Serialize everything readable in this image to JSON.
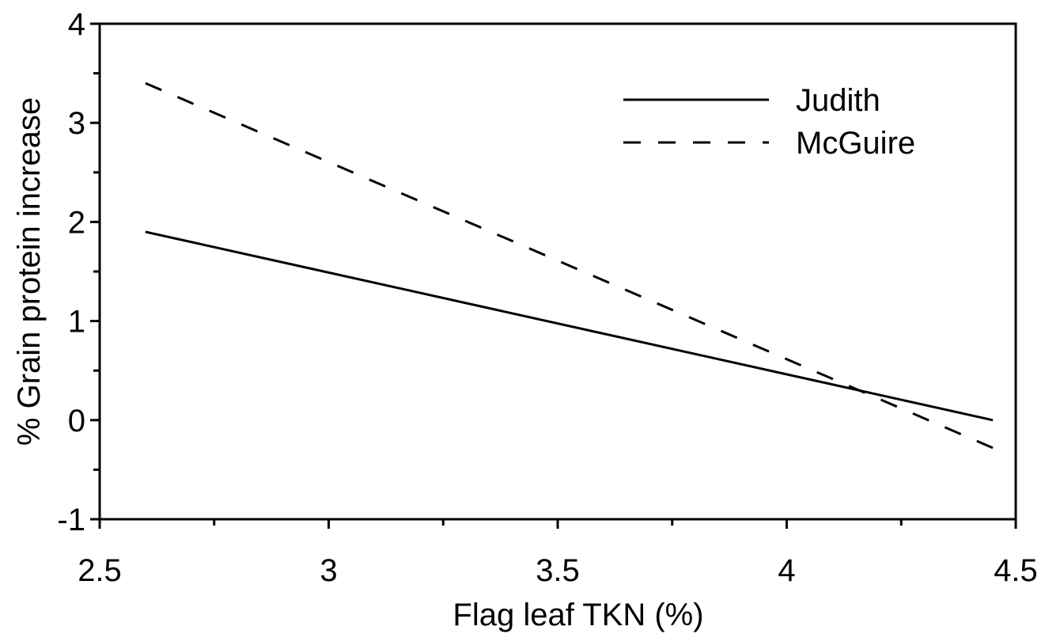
{
  "chart_data": {
    "type": "line",
    "title": "",
    "xlabel": "Flag leaf TKN (%)",
    "ylabel": "% Grain protein increase",
    "xlim": [
      2.5,
      4.5
    ],
    "ylim": [
      -1,
      4
    ],
    "x_ticks": [
      "2.5",
      "3",
      "3.5",
      "4",
      "4.5"
    ],
    "y_ticks": [
      "-1",
      "0",
      "1",
      "2",
      "3",
      "4"
    ],
    "grid": false,
    "legend_position": "top-right",
    "series": [
      {
        "name": "Judith",
        "style": "solid",
        "color": "#000000",
        "x": [
          2.6,
          4.45
        ],
        "y": [
          1.9,
          0.0
        ]
      },
      {
        "name": "McGuire",
        "style": "dashed",
        "color": "#000000",
        "x": [
          2.6,
          4.45
        ],
        "y": [
          3.4,
          -0.28
        ]
      }
    ]
  }
}
